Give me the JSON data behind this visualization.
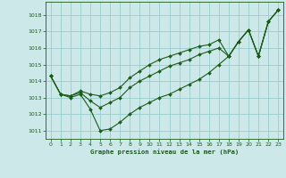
{
  "bg_color": "#cce8e8",
  "grid_color": "#99cccc",
  "line_color": "#1a5c1a",
  "xlabel": "Graphe pression niveau de la mer (hPa)",
  "xlim": [
    -0.5,
    23.5
  ],
  "ylim": [
    1010.5,
    1018.8
  ],
  "yticks": [
    1011,
    1012,
    1013,
    1014,
    1015,
    1016,
    1017,
    1018
  ],
  "xticks": [
    0,
    1,
    2,
    3,
    4,
    5,
    6,
    7,
    8,
    9,
    10,
    11,
    12,
    13,
    14,
    15,
    16,
    17,
    18,
    19,
    20,
    21,
    22,
    23
  ],
  "line_top": [
    1014.3,
    1013.2,
    1013.1,
    1013.4,
    1013.2,
    1013.1,
    1013.3,
    1013.6,
    1014.2,
    1014.6,
    1015.0,
    1015.3,
    1015.5,
    1015.7,
    1015.9,
    1016.1,
    1016.2,
    1016.5,
    1015.5,
    1016.4,
    1017.1,
    1015.5,
    1017.6,
    1018.3
  ],
  "line_mid": [
    1014.3,
    1013.2,
    1013.1,
    1013.3,
    1012.8,
    1012.4,
    1012.7,
    1013.0,
    1013.6,
    1014.0,
    1014.3,
    1014.6,
    1014.9,
    1015.1,
    1015.3,
    1015.6,
    1015.8,
    1016.0,
    1015.5,
    1016.4,
    1017.1,
    1015.5,
    1017.6,
    1018.3
  ],
  "line_bot": [
    1014.3,
    1013.2,
    1013.0,
    1013.2,
    1012.3,
    1011.0,
    1011.1,
    1011.5,
    1012.0,
    1012.4,
    1012.7,
    1013.0,
    1013.2,
    1013.5,
    1013.8,
    1014.1,
    1014.5,
    1015.0,
    1015.5,
    1016.4,
    1017.1,
    1015.5,
    1017.6,
    1018.3
  ]
}
